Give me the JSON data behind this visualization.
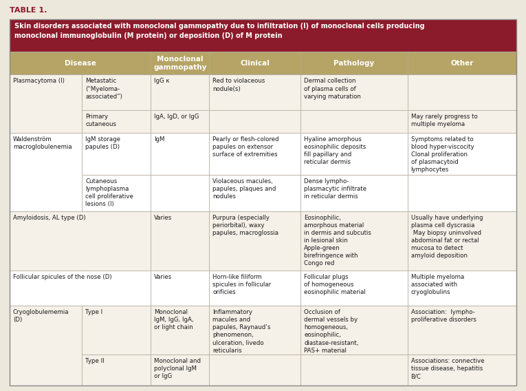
{
  "table_title": "TABLE 1.",
  "header_text": "Skin disorders associated with monoclonal gammopathy due to infiltration (I) of monoclonal cells producing\nmonoclonal immunoglobulin (M protein) or deposition (D) of M protein",
  "col_headers": [
    "Disease",
    "Monoclonal\ngammopathy",
    "Clinical",
    "Pathology",
    "Other"
  ],
  "header_bg": "#8B1A2A",
  "header_text_color": "#FFFFFF",
  "col_header_bg": "#B5A465",
  "col_header_text_color": "#FFFFFF",
  "row_bg_light": "#F5F0E8",
  "row_bg_white": "#FFFFFF",
  "border_color": "#B0A898",
  "title_color": "#8B1A2A",
  "background_color": "#EDE8DC",
  "text_color": "#1a1a1a",
  "fig_width": 7.65,
  "fig_height": 5.68,
  "dpi": 100,
  "rows": [
    {
      "group": "Plasmacytoma (I)",
      "sub": "Metastatic\n(“Myeloma-\nassociated”)",
      "mono": "IgG κ",
      "clinical": "Red to violaceous\nnodule(s)",
      "path": "Dermal collection\nof plasma cells of\nvarying maturation",
      "other": ""
    },
    {
      "group": "",
      "sub": "Primary\ncutaneous",
      "mono": "IgA, IgD, or IgG",
      "clinical": "",
      "path": "",
      "other": "May rarely progress to\nmultiple myeloma"
    },
    {
      "group": "Waldenström\nmacroglobulenemia",
      "sub": "IgM storage\npapules (D)",
      "mono": "IgM",
      "clinical": "Pearly or flesh-colored\npapules on extensor\nsurface of extremities",
      "path": "Hyaline amorphous\neosinophilic deposits\nfill papillary and\nreticular dermis",
      "other": "Symptoms related to\nblood hyper-viscocity\nClonal proliferation\nof plasmacytoid\nlymphocytes"
    },
    {
      "group": "",
      "sub": "Cutaneous\nlymphoplasma\ncell proliferative\nlesions (I)",
      "mono": "",
      "clinical": "Violaceous macules,\npapules, plaques and\nnodules",
      "path": "Dense lympho-\nplasmacytic infiltrate\nin reticular dermis",
      "other": ""
    },
    {
      "group": "Amyloidosis, AL type (D)",
      "sub": "",
      "mono": "Varies",
      "clinical": "Purpura (especially\nperiorbital), waxy\npapules, macroglossia",
      "path": "Eosinophilic,\namorphous material\nin dermis and subcutis\nin lesional skin\nApple-green\nbirefringence with\nCongo red",
      "other": "Usually have underlying\nplasma cell dyscrasia\n May biopsy uninvolved\nabdominal fat or rectal\nmucosa to detect\namyloid deposition"
    },
    {
      "group": "Follicular spicules of the nose (D)",
      "sub": "",
      "mono": "Varies",
      "clinical": "Horn-like filiform\nspicules in follicular\norificies",
      "path": "Follicular plugs\nof homogeneous\neosinophilic material",
      "other": "Multiple myeloma\nassociated with\ncryoglobulins"
    },
    {
      "group": "Cryoglobulememia\n(D)",
      "sub": "Type I",
      "mono": "Monoclonal\nIgM, IgG, IgA,\nor light chain",
      "clinical": "Inflammatory\nmacules and\npapules, Raynaud’s\nphenomenon,\nulceration, livedo\nreticularis",
      "path": "Occlusion of\ndermal vessels by\nhomogeneous,\neosinophilic,\ndiastase-resistant,\nPAS+ material",
      "other": "Association:  lympho-\nproliferative disorders"
    },
    {
      "group": "",
      "sub": "Type II",
      "mono": "Monoclonal and\npolyclonal IgM\nor IgG",
      "clinical": "",
      "path": "",
      "other": "Associations: connective\ntissue disease, hepatitis\nB/C"
    }
  ]
}
